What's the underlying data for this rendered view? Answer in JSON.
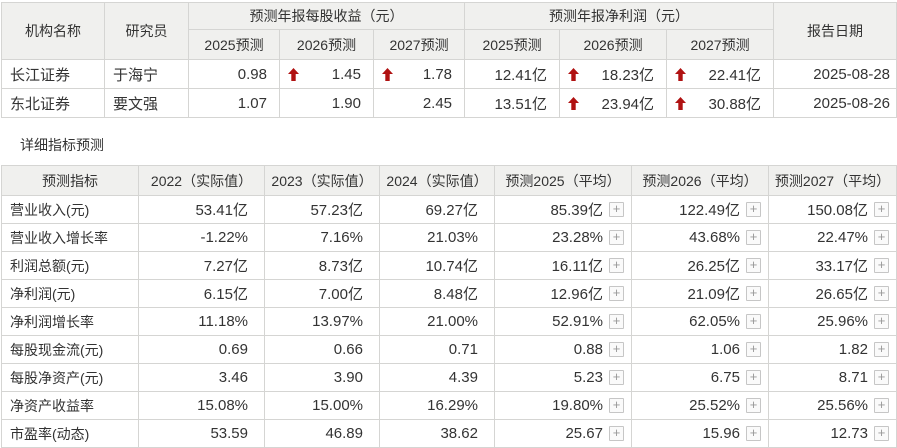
{
  "colors": {
    "header_bg": "#f0f0ee",
    "border": "#d5d5d3",
    "text": "#333333",
    "up_arrow": "#b01212",
    "plus_glyph": "#999999"
  },
  "forecast_table": {
    "org_header": "机构名称",
    "researcher_header": "研究员",
    "eps_group_header": "预测年报每股收益（元）",
    "profit_group_header": "预测年报净利润（元）",
    "date_header": "报告日期",
    "year_headers": [
      "2025预测",
      "2026预测",
      "2027预测"
    ],
    "rows": [
      {
        "org": "长江证券",
        "researcher": "于海宁",
        "eps": [
          {
            "value": "0.98",
            "up": false
          },
          {
            "value": "1.45",
            "up": true
          },
          {
            "value": "1.78",
            "up": true
          }
        ],
        "profit": [
          {
            "value": "12.41亿",
            "up": false
          },
          {
            "value": "18.23亿",
            "up": true
          },
          {
            "value": "22.41亿",
            "up": true
          }
        ],
        "date": "2025-08-28"
      },
      {
        "org": "东北证券",
        "researcher": "要文强",
        "eps": [
          {
            "value": "1.07",
            "up": false
          },
          {
            "value": "1.90",
            "up": false
          },
          {
            "value": "2.45",
            "up": false
          }
        ],
        "profit": [
          {
            "value": "13.51亿",
            "up": false
          },
          {
            "value": "23.94亿",
            "up": true
          },
          {
            "value": "30.88亿",
            "up": true
          }
        ],
        "date": "2025-08-26"
      }
    ]
  },
  "detail_table": {
    "title": "详细指标预测",
    "headers": [
      "预测指标",
      "2022（实际值）",
      "2023（实际值）",
      "2024（实际值）",
      "预测2025（平均）",
      "预测2026（平均）",
      "预测2027（平均）"
    ],
    "plus_label": "+",
    "rows": [
      {
        "label": "营业收入(元)",
        "actual": [
          "53.41亿",
          "57.23亿",
          "69.27亿"
        ],
        "forecast": [
          "85.39亿",
          "122.49亿",
          "150.08亿"
        ]
      },
      {
        "label": "营业收入增长率",
        "actual": [
          "-1.22%",
          "7.16%",
          "21.03%"
        ],
        "forecast": [
          "23.28%",
          "43.68%",
          "22.47%"
        ]
      },
      {
        "label": "利润总额(元)",
        "actual": [
          "7.27亿",
          "8.73亿",
          "10.74亿"
        ],
        "forecast": [
          "16.11亿",
          "26.25亿",
          "33.17亿"
        ]
      },
      {
        "label": "净利润(元)",
        "actual": [
          "6.15亿",
          "7.00亿",
          "8.48亿"
        ],
        "forecast": [
          "12.96亿",
          "21.09亿",
          "26.65亿"
        ]
      },
      {
        "label": "净利润增长率",
        "actual": [
          "11.18%",
          "13.97%",
          "21.00%"
        ],
        "forecast": [
          "52.91%",
          "62.05%",
          "25.96%"
        ]
      },
      {
        "label": "每股现金流(元)",
        "actual": [
          "0.69",
          "0.66",
          "0.71"
        ],
        "forecast": [
          "0.88",
          "1.06",
          "1.82"
        ]
      },
      {
        "label": "每股净资产(元)",
        "actual": [
          "3.46",
          "3.90",
          "4.39"
        ],
        "forecast": [
          "5.23",
          "6.75",
          "8.71"
        ]
      },
      {
        "label": "净资产收益率",
        "actual": [
          "15.08%",
          "15.00%",
          "16.29%"
        ],
        "forecast": [
          "19.80%",
          "25.52%",
          "25.56%"
        ]
      },
      {
        "label": "市盈率(动态)",
        "actual": [
          "53.59",
          "46.89",
          "38.62"
        ],
        "forecast": [
          "25.67",
          "15.96",
          "12.73"
        ]
      }
    ]
  }
}
